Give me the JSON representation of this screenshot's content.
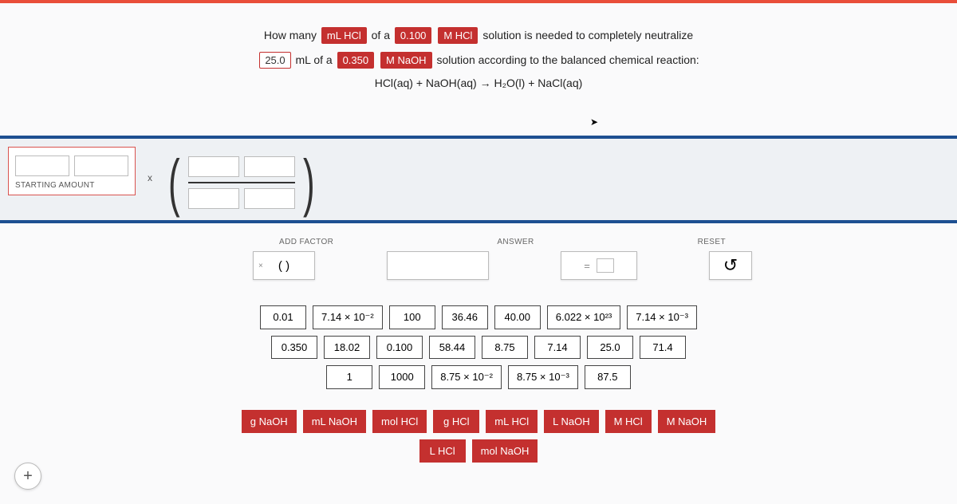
{
  "colors": {
    "accent_red": "#c4302f",
    "band_blue": "#1d4f91",
    "top_orange": "#e94e3a",
    "bg": "#fafafb"
  },
  "question": {
    "line1": {
      "p1": "How many",
      "chip1": "mL HCl",
      "p2": "of a",
      "chip2": "0.100",
      "chip3": "M HCl",
      "p3": "solution is needed to completely neutralize"
    },
    "line2": {
      "chip1": "25.0",
      "p1": "mL of a",
      "chip2": "0.350",
      "chip3": "M NaOH",
      "p2": "solution according to the balanced chemical reaction:"
    },
    "equation": "HCl(aq) + NaOH(aq) → H₂O(l) + NaCl(aq)"
  },
  "starting": {
    "label": "STARTING AMOUNT",
    "mult": "x"
  },
  "controls": {
    "add_factor_label": "ADD FACTOR",
    "answer_label": "ANSWER",
    "reset_label": "RESET",
    "factor_symbol": "(  )",
    "equals": "=",
    "reset_icon": "↺"
  },
  "number_tiles": {
    "row1": [
      "0.01",
      "7.14 × 10⁻²",
      "100",
      "36.46",
      "40.00",
      "6.022 × 10²³",
      "7.14 × 10⁻³"
    ],
    "row2": [
      "0.350",
      "18.02",
      "0.100",
      "58.44",
      "8.75",
      "7.14",
      "25.0",
      "71.4"
    ],
    "row3": [
      "1",
      "1000",
      "8.75 × 10⁻²",
      "8.75 × 10⁻³",
      "87.5"
    ]
  },
  "unit_tiles": {
    "row1": [
      "g NaOH",
      "mL NaOH",
      "mol HCl",
      "g HCl",
      "mL HCl",
      "L NaOH",
      "M HCl",
      "M NaOH"
    ],
    "row2": [
      "L HCl",
      "mol NaOH"
    ]
  },
  "add_step": "+"
}
